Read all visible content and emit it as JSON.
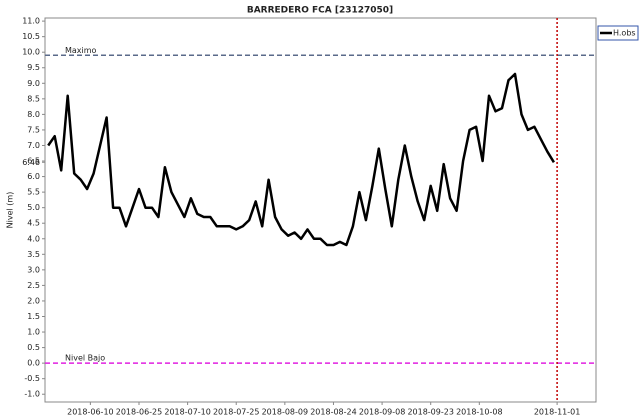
{
  "chart_data": {
    "type": "line",
    "title": "BARREDERO FCA [23127050]",
    "y_label": "Nivel (m)",
    "x": [
      "2018-05-28",
      "2018-05-30",
      "2018-06-01",
      "2018-06-03",
      "2018-06-05",
      "2018-06-07",
      "2018-06-09",
      "2018-06-11",
      "2018-06-13",
      "2018-06-15",
      "2018-06-17",
      "2018-06-19",
      "2018-06-21",
      "2018-06-23",
      "2018-06-25",
      "2018-06-27",
      "2018-06-29",
      "2018-07-01",
      "2018-07-03",
      "2018-07-05",
      "2018-07-07",
      "2018-07-09",
      "2018-07-11",
      "2018-07-13",
      "2018-07-15",
      "2018-07-17",
      "2018-07-19",
      "2018-07-21",
      "2018-07-23",
      "2018-07-25",
      "2018-07-27",
      "2018-07-29",
      "2018-07-31",
      "2018-08-02",
      "2018-08-04",
      "2018-08-06",
      "2018-08-08",
      "2018-08-10",
      "2018-08-12",
      "2018-08-14",
      "2018-08-16",
      "2018-08-18",
      "2018-08-20",
      "2018-08-22",
      "2018-08-24",
      "2018-08-26",
      "2018-08-28",
      "2018-08-30",
      "2018-09-01",
      "2018-09-03",
      "2018-09-05",
      "2018-09-07",
      "2018-09-09",
      "2018-09-11",
      "2018-09-13",
      "2018-09-15",
      "2018-09-17",
      "2018-09-19",
      "2018-09-21",
      "2018-09-23",
      "2018-09-25",
      "2018-09-27",
      "2018-09-29",
      "2018-10-01",
      "2018-10-03",
      "2018-10-05",
      "2018-10-07",
      "2018-10-09",
      "2018-10-11",
      "2018-10-13",
      "2018-10-15",
      "2018-10-17",
      "2018-10-19",
      "2018-10-21",
      "2018-10-23",
      "2018-10-25",
      "2018-10-27",
      "2018-10-29",
      "2018-10-31"
    ],
    "series": [
      {
        "name": "H.obs",
        "color": "#000000",
        "values": [
          7.0,
          7.3,
          6.2,
          8.6,
          6.1,
          5.9,
          5.6,
          6.1,
          7.0,
          7.9,
          5.0,
          5.0,
          4.4,
          5.0,
          5.6,
          5.0,
          5.0,
          4.7,
          6.3,
          5.5,
          5.1,
          4.7,
          5.3,
          4.8,
          4.7,
          4.7,
          4.4,
          4.4,
          4.4,
          4.3,
          4.4,
          4.6,
          5.2,
          4.4,
          5.9,
          4.7,
          4.3,
          4.1,
          4.2,
          4.0,
          4.3,
          4.0,
          4.0,
          3.8,
          3.8,
          3.9,
          3.8,
          4.4,
          5.5,
          4.6,
          5.7,
          6.9,
          5.6,
          4.4,
          5.9,
          7.0,
          6.0,
          5.2,
          4.6,
          5.7,
          4.9,
          6.4,
          5.3,
          4.9,
          6.5,
          7.5,
          7.6,
          6.5,
          8.6,
          8.1,
          8.2,
          9.1,
          9.3,
          8.0,
          7.5,
          7.6,
          7.2,
          6.8,
          6.46
        ]
      }
    ],
    "xlim": [
      "2018-05-27",
      "2018-11-13"
    ],
    "xticks": [
      "2018-06-10",
      "2018-06-25",
      "2018-07-10",
      "2018-07-25",
      "2018-08-09",
      "2018-08-24",
      "2018-09-08",
      "2018-09-23",
      "2018-10-08",
      "2018-11-01"
    ],
    "ylim": [
      -1.25,
      11.1
    ],
    "yticks": [
      {
        "value": -1,
        "label": "-1.0"
      },
      -0.5,
      {
        "value": 0,
        "label": "0.0"
      },
      0.5,
      {
        "value": 1,
        "label": "1.0"
      },
      1.5,
      {
        "value": 2,
        "label": "2.0"
      },
      2.5,
      {
        "value": 3,
        "label": "3.0"
      },
      3.5,
      {
        "value": 4,
        "label": "4.0"
      },
      4.5,
      {
        "value": 5,
        "label": "5.0"
      },
      5.5,
      {
        "value": 6,
        "label": "6.0"
      },
      6.46,
      6.5,
      {
        "value": 7,
        "label": "7.0"
      },
      7.5,
      {
        "value": 8,
        "label": "8.0"
      },
      8.5,
      {
        "value": 9,
        "label": "9.0"
      },
      9.5,
      {
        "value": 10,
        "label": "10.0"
      },
      10.5,
      {
        "value": 11,
        "label": "11.0"
      }
    ],
    "reference_lines": [
      {
        "name": "Maximo",
        "value": 9.9,
        "color": "#5a6a8a"
      },
      {
        "name": "Nivel Bajo",
        "value": 0,
        "color": "#e020e0"
      }
    ],
    "vline": {
      "x": "2018-11-01",
      "color": "#c00000"
    },
    "legend": "outside-top-right"
  }
}
